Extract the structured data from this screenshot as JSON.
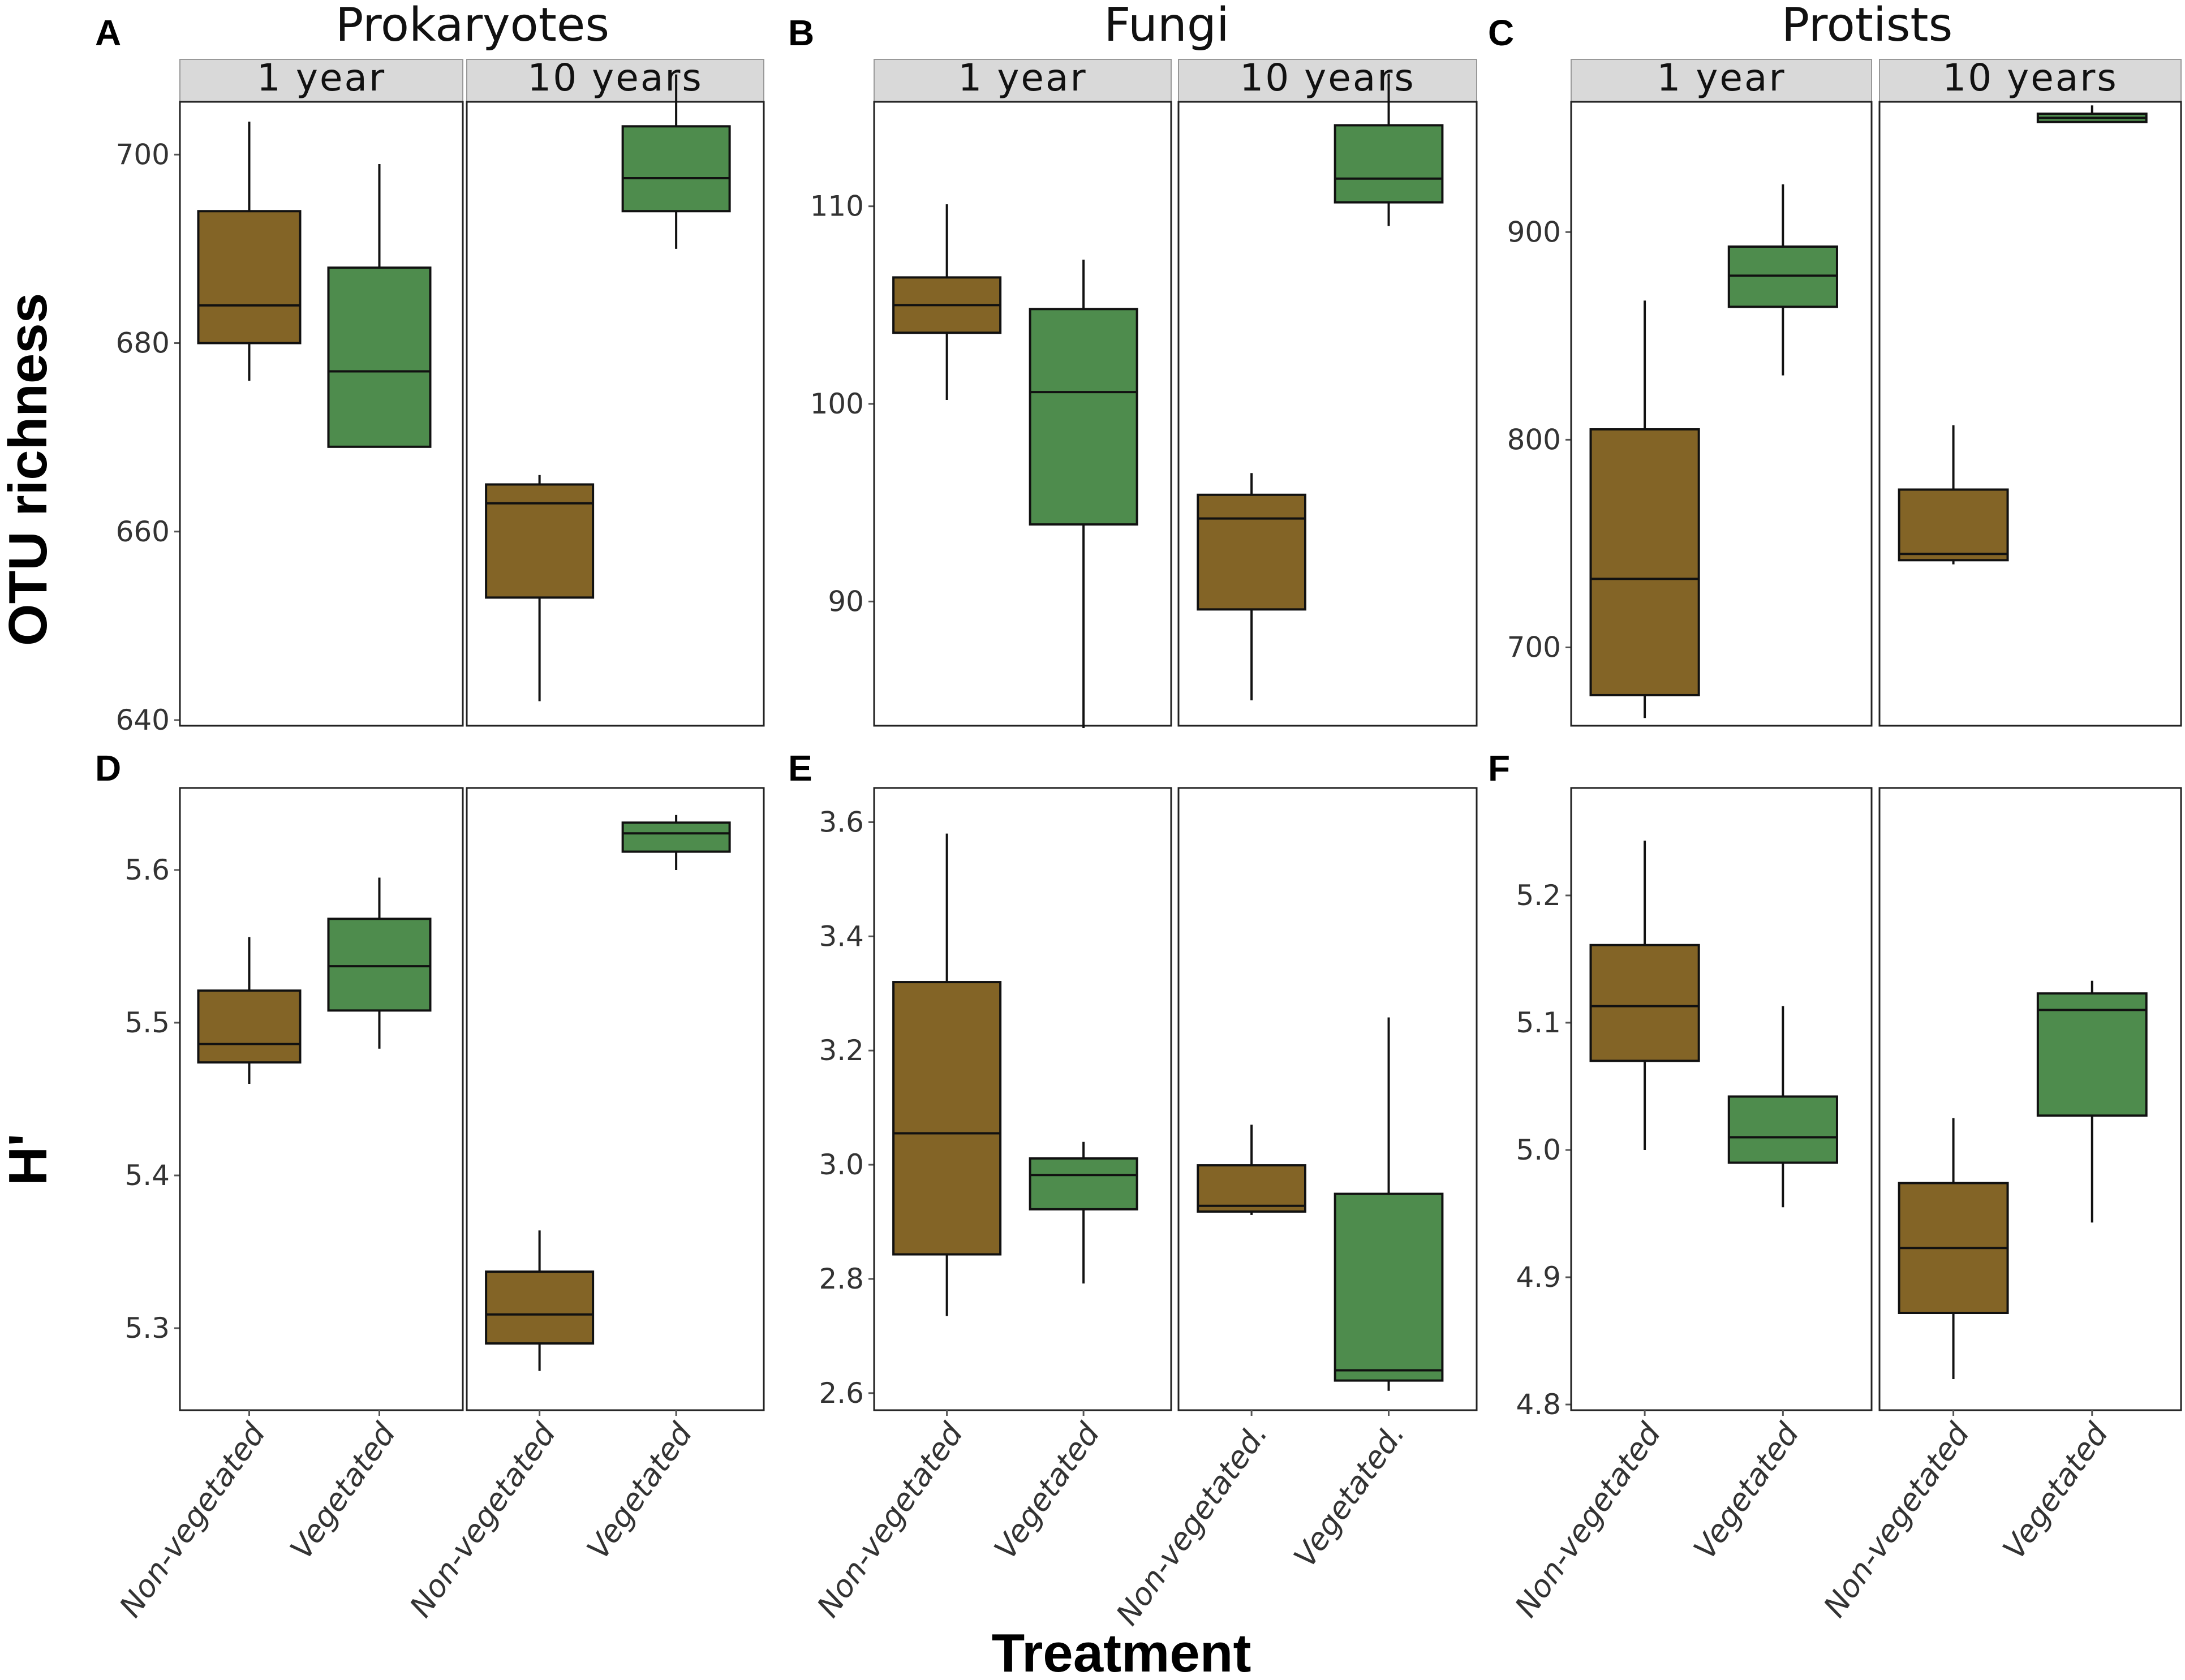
{
  "figure": {
    "xlabel": "Treatment",
    "ylabel_top": "OTU richness",
    "ylabel_bottom": "H'",
    "group_titles": [
      "Prokaryotes",
      "Fungi",
      "Protists"
    ],
    "panel_letters_top": [
      "A",
      "B",
      "C"
    ],
    "panel_letters_bottom": [
      "D",
      "E",
      "F"
    ],
    "facet_labels": [
      "1 year",
      "10 years"
    ]
  },
  "colors": {
    "non_vegetated": "#836426",
    "vegetated": "#4e8c4d",
    "strip": "#d9d9d9"
  },
  "chart_data": [
    {
      "type": "boxplot",
      "panel": "A",
      "title": "Prokaryotes",
      "ylabel": "OTU richness",
      "ylim": [
        640,
        705
      ],
      "yticks": [
        640,
        660,
        680,
        700
      ],
      "facets": [
        {
          "label": "1 year",
          "categories": [
            "Non-vegetated",
            "Vegetated"
          ],
          "boxes": [
            {
              "category": "Non-vegetated",
              "min": 676,
              "q1": 680,
              "median": 684,
              "q3": 694,
              "max": 703.5
            },
            {
              "category": "Vegetated",
              "min": 669,
              "q1": 669,
              "median": 677,
              "q3": 688,
              "max": 699
            }
          ]
        },
        {
          "label": "10 years",
          "categories": [
            "Non-vegetated",
            "Vegetated"
          ],
          "boxes": [
            {
              "category": "Non-vegetated",
              "min": 642,
              "q1": 653,
              "median": 663,
              "q3": 665,
              "max": 666
            },
            {
              "category": "Vegetated",
              "min": 690,
              "q1": 694,
              "median": 697.5,
              "q3": 703,
              "max": 708.5
            }
          ]
        }
      ]
    },
    {
      "type": "boxplot",
      "panel": "B",
      "title": "Fungi",
      "ylabel": "OTU richness",
      "ylim": [
        84,
        115
      ],
      "yticks": [
        90,
        100,
        110
      ],
      "facets": [
        {
          "label": "1 year",
          "categories": [
            "Non-vegetated",
            "Vegetated"
          ],
          "boxes": [
            {
              "category": "Non-vegetated",
              "min": 100.2,
              "q1": 103.6,
              "median": 105.0,
              "q3": 106.4,
              "max": 110.1
            },
            {
              "category": "Vegetated",
              "min": 83.6,
              "q1": 93.9,
              "median": 100.6,
              "q3": 104.8,
              "max": 107.3
            }
          ]
        },
        {
          "label": "10 years",
          "categories": [
            "Non-vegetated.",
            "Vegetated."
          ],
          "boxes": [
            {
              "category": "Non-vegetated.",
              "min": 85.0,
              "q1": 89.6,
              "median": 94.2,
              "q3": 95.4,
              "max": 96.5
            },
            {
              "category": "Vegetated.",
              "min": 109.0,
              "q1": 110.2,
              "median": 111.4,
              "q3": 114.1,
              "max": 116.7
            }
          ]
        }
      ]
    },
    {
      "type": "boxplot",
      "panel": "C",
      "title": "Protists",
      "ylabel": "OTU richness",
      "ylim": [
        665,
        960
      ],
      "yticks": [
        700,
        800,
        900
      ],
      "facets": [
        {
          "label": "1 year",
          "categories": [
            "Non-vegetated",
            "Vegetated"
          ],
          "boxes": [
            {
              "category": "Non-vegetated",
              "min": 666,
              "q1": 677,
              "median": 733,
              "q3": 805,
              "max": 867
            },
            {
              "category": "Vegetated",
              "min": 831,
              "q1": 864,
              "median": 879,
              "q3": 893,
              "max": 923
            }
          ]
        },
        {
          "label": "10 years",
          "categories": [
            "Non-vegetated",
            "Vegetated"
          ],
          "boxes": [
            {
              "category": "Non-vegetated",
              "min": 740,
              "q1": 742,
              "median": 745,
              "q3": 776,
              "max": 807
            },
            {
              "category": "Vegetated",
              "min": 953,
              "q1": 953,
              "median": 955,
              "q3": 957,
              "max": 961
            }
          ]
        }
      ]
    },
    {
      "type": "boxplot",
      "panel": "D",
      "ylabel": "H'",
      "ylim": [
        5.25,
        5.65
      ],
      "yticks": [
        5.3,
        5.4,
        5.5,
        5.6
      ],
      "facets": [
        {
          "label": "1 year",
          "categories": [
            "Non-vegetated",
            "Vegetated"
          ],
          "boxes": [
            {
              "category": "Non-vegetated",
              "min": 5.46,
              "q1": 5.474,
              "median": 5.486,
              "q3": 5.521,
              "max": 5.556
            },
            {
              "category": "Vegetated",
              "min": 5.483,
              "q1": 5.508,
              "median": 5.537,
              "q3": 5.568,
              "max": 5.595
            }
          ]
        },
        {
          "label": "10 years",
          "categories": [
            "Non-vegetated",
            "Vegetated"
          ],
          "boxes": [
            {
              "category": "Non-vegetated",
              "min": 5.272,
              "q1": 5.29,
              "median": 5.309,
              "q3": 5.337,
              "max": 5.364
            },
            {
              "category": "Vegetated",
              "min": 5.6,
              "q1": 5.612,
              "median": 5.624,
              "q3": 5.631,
              "max": 5.636
            }
          ]
        }
      ]
    },
    {
      "type": "boxplot",
      "panel": "E",
      "ylabel": "H'",
      "ylim": [
        2.58,
        3.65
      ],
      "yticks": [
        2.6,
        2.8,
        3.0,
        3.2,
        3.4,
        3.6
      ],
      "facets": [
        {
          "label": "1 year",
          "categories": [
            "Non-vegetated",
            "Vegetated"
          ],
          "boxes": [
            {
              "category": "Non-vegetated",
              "min": 2.735,
              "q1": 2.843,
              "median": 3.055,
              "q3": 3.32,
              "max": 3.58
            },
            {
              "category": "Vegetated",
              "min": 2.792,
              "q1": 2.922,
              "median": 2.982,
              "q3": 3.011,
              "max": 3.04
            }
          ]
        },
        {
          "label": "10 years",
          "categories": [
            "Non-vegetated.",
            "Vegetated."
          ],
          "boxes": [
            {
              "category": "Non-vegetated.",
              "min": 2.912,
              "q1": 2.918,
              "median": 2.928,
              "q3": 2.999,
              "max": 3.07
            },
            {
              "category": "Vegetated.",
              "min": 2.604,
              "q1": 2.622,
              "median": 2.64,
              "q3": 2.949,
              "max": 3.258
            }
          ]
        }
      ]
    },
    {
      "type": "boxplot",
      "panel": "F",
      "ylabel": "H'",
      "ylim": [
        4.8,
        5.28
      ],
      "yticks": [
        4.8,
        4.9,
        5.0,
        5.1,
        5.2
      ],
      "facets": [
        {
          "label": "1 year",
          "categories": [
            "Non-vegetated",
            "Vegetated"
          ],
          "boxes": [
            {
              "category": "Non-vegetated",
              "min": 5.0,
              "q1": 5.07,
              "median": 5.113,
              "q3": 5.161,
              "max": 5.243
            },
            {
              "category": "Vegetated",
              "min": 4.955,
              "q1": 4.99,
              "median": 5.01,
              "q3": 5.042,
              "max": 5.113
            }
          ]
        },
        {
          "label": "10 years",
          "categories": [
            "Non-vegetated",
            "Vegetated"
          ],
          "boxes": [
            {
              "category": "Non-vegetated",
              "min": 4.82,
              "q1": 4.872,
              "median": 4.923,
              "q3": 4.974,
              "max": 5.025
            },
            {
              "category": "Vegetated",
              "min": 4.943,
              "q1": 5.027,
              "median": 5.11,
              "q3": 5.123,
              "max": 5.133
            }
          ]
        }
      ]
    }
  ]
}
